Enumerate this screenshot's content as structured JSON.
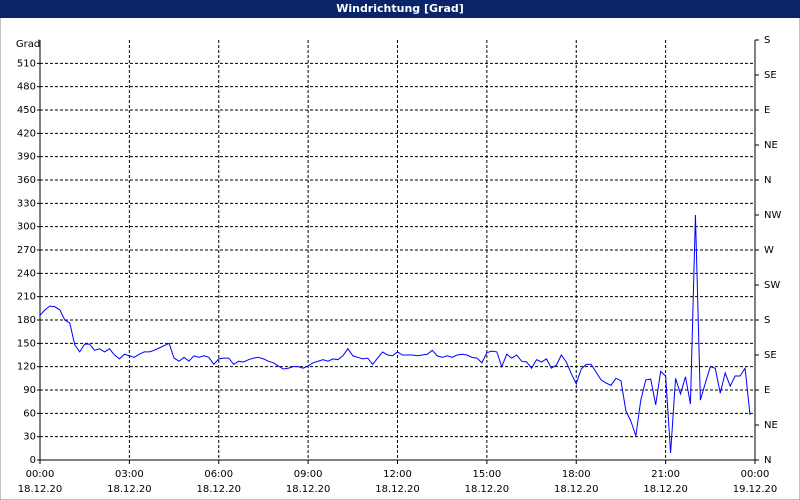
{
  "chart_data": {
    "type": "line",
    "title": "Windrichtung [Grad]",
    "y_label": "Grad",
    "x": [
      0,
      10,
      20,
      30,
      40,
      50,
      60,
      70,
      80,
      90,
      100,
      110,
      120,
      130,
      140,
      150,
      160,
      170,
      180,
      190,
      200,
      210,
      220,
      230,
      240,
      250,
      260,
      270,
      280,
      290,
      300,
      310,
      320,
      330,
      340,
      350,
      360,
      370,
      380,
      390,
      400,
      410,
      420,
      430,
      440,
      450,
      460,
      470,
      480,
      490,
      500,
      510,
      520,
      530,
      540,
      550,
      560,
      570,
      580,
      590,
      600,
      610,
      620,
      630,
      640,
      650,
      660,
      670,
      680,
      690,
      700,
      710,
      720,
      730,
      740,
      750,
      760,
      770,
      780,
      790,
      800,
      810,
      820,
      830,
      840,
      850,
      860,
      870,
      880,
      890,
      900,
      910,
      920,
      930,
      940,
      950,
      960,
      970,
      980,
      990,
      1000,
      1010,
      1020,
      1030,
      1040,
      1050,
      1060,
      1070,
      1080,
      1090,
      1100,
      1110,
      1120,
      1130,
      1140,
      1150,
      1160,
      1170,
      1180,
      1190,
      1200,
      1210,
      1220,
      1230,
      1240,
      1250,
      1260,
      1270,
      1280,
      1290,
      1300,
      1310,
      1320,
      1330,
      1340,
      1350,
      1360,
      1370,
      1380,
      1390,
      1400,
      1410,
      1420,
      1430
    ],
    "series": [
      {
        "color": "#0000ff",
        "values": [
          186,
          193,
          198,
          197,
          193,
          180,
          176,
          148,
          139,
          149,
          149,
          141,
          143,
          139,
          143,
          135,
          130,
          136,
          134,
          132,
          136,
          139,
          139,
          141,
          144,
          147,
          150,
          131,
          127,
          132,
          127,
          134,
          132,
          134,
          132,
          123,
          130,
          131,
          131,
          123,
          127,
          126,
          129,
          131,
          132,
          130,
          127,
          125,
          121,
          117,
          118,
          120,
          120,
          118,
          121,
          125,
          127,
          129,
          127,
          130,
          129,
          134,
          143,
          134,
          132,
          130,
          131,
          123,
          131,
          139,
          135,
          134,
          139,
          135,
          135,
          135,
          134,
          135,
          136,
          141,
          134,
          132,
          134,
          132,
          135,
          136,
          135,
          132,
          131,
          125,
          138,
          140,
          139,
          120,
          136,
          131,
          135,
          127,
          126,
          118,
          129,
          126,
          130,
          118,
          122,
          135,
          126,
          111,
          98,
          117,
          123,
          123,
          113,
          103,
          99,
          96,
          105,
          102,
          63,
          50,
          31,
          77,
          103,
          104,
          71,
          114,
          108,
          9,
          105,
          85,
          107,
          72,
          315,
          77,
          99,
          120,
          118,
          86,
          112,
          95,
          108,
          108,
          118,
          58
        ]
      }
    ],
    "xlim": [
      0,
      1440
    ],
    "xticks": [
      {
        "value": 0,
        "label": "00:00"
      },
      {
        "value": 180,
        "label": "03:00"
      },
      {
        "value": 360,
        "label": "06:00"
      },
      {
        "value": 540,
        "label": "09:00"
      },
      {
        "value": 720,
        "label": "12:00"
      },
      {
        "value": 900,
        "label": "15:00"
      },
      {
        "value": 1080,
        "label": "18:00"
      },
      {
        "value": 1260,
        "label": "21:00"
      },
      {
        "value": 1440,
        "label": "00:00"
      }
    ],
    "xtick_dates": [
      "18.12.20",
      "18.12.20",
      "18.12.20",
      "18.12.20",
      "18.12.20",
      "18.12.20",
      "18.12.20",
      "18.12.20",
      "19.12.20"
    ],
    "ylim": [
      0,
      540
    ],
    "yticks": [
      0,
      30,
      60,
      90,
      120,
      150,
      180,
      210,
      240,
      270,
      300,
      330,
      360,
      390,
      420,
      450,
      480,
      510
    ],
    "y2lim": [
      0,
      540
    ],
    "y2ticks": [
      {
        "value": 0,
        "label": "N"
      },
      {
        "value": 45,
        "label": "NE"
      },
      {
        "value": 90,
        "label": "E"
      },
      {
        "value": 135,
        "label": "SE"
      },
      {
        "value": 180,
        "label": "S"
      },
      {
        "value": 225,
        "label": "SW"
      },
      {
        "value": 270,
        "label": "W"
      },
      {
        "value": 315,
        "label": "NW"
      },
      {
        "value": 360,
        "label": "N"
      },
      {
        "value": 405,
        "label": "NE"
      },
      {
        "value": 450,
        "label": "E"
      },
      {
        "value": 495,
        "label": "SE"
      },
      {
        "value": 540,
        "label": "S"
      }
    ],
    "grid": true
  }
}
